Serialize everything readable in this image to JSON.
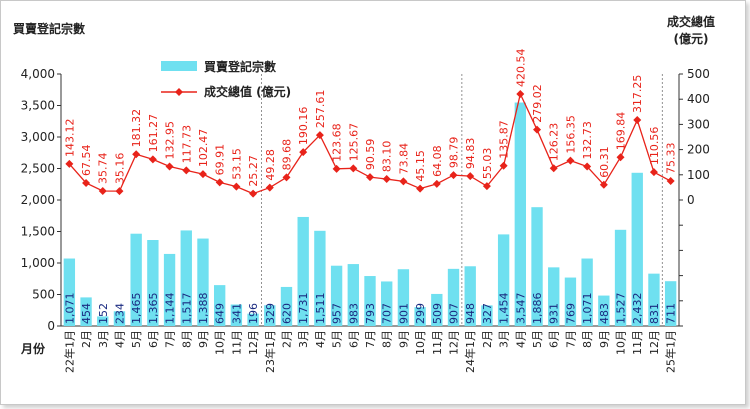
{
  "chart_data": {
    "type": "bar+line",
    "left_axis_title": "買賣登記宗數",
    "right_axis_title_line1": "成交總值",
    "right_axis_title_line2": "(億元)",
    "x_axis_title": "月份",
    "left_ylim": [
      0,
      4000
    ],
    "right_ylim": [
      -500,
      500
    ],
    "left_ticks": [
      "4,000",
      "3,500",
      "3,000",
      "2,500",
      "2,000",
      "1,500",
      "1,000",
      "500",
      "0"
    ],
    "right_ticks": [
      "500",
      "400",
      "300",
      "200",
      "100",
      "0"
    ],
    "legend_position": "top-left",
    "grid": false,
    "colors": {
      "bars": "#6fe0f0",
      "line": "#e8231a",
      "value_text_bar": "#1a2a80",
      "value_text_line": "#e8231a",
      "axis": "#333333"
    },
    "categories": [
      "22年1月",
      "2月",
      "3月",
      "4月",
      "5月",
      "6月",
      "7月",
      "8月",
      "9月",
      "10月",
      "11月",
      "12月",
      "23年1月",
      "2月",
      "3月",
      "4月",
      "5月",
      "6月",
      "7月",
      "8月",
      "9月",
      "10月",
      "11月",
      "12月",
      "24年1月",
      "2月",
      "3月",
      "4月",
      "5月",
      "6月",
      "7月",
      "8月",
      "9月",
      "10月",
      "11月",
      "12月",
      "25年1月"
    ],
    "year_separators_after": [
      11,
      23,
      35
    ],
    "series": [
      {
        "name": "買賣登記宗數",
        "kind": "bar",
        "axis": "left",
        "values": [
          1071,
          454,
          152,
          234,
          1465,
          1365,
          1144,
          1517,
          1388,
          649,
          341,
          196,
          329,
          620,
          1731,
          1511,
          957,
          983,
          793,
          707,
          901,
          299,
          509,
          907,
          948,
          327,
          1454,
          3547,
          1886,
          931,
          769,
          1071,
          483,
          1527,
          2432,
          831,
          711
        ],
        "labels": [
          "1,071",
          "454",
          "152",
          "234",
          "1,465",
          "1,365",
          "1,144",
          "1,517",
          "1,388",
          "649",
          "341",
          "196",
          "329",
          "620",
          "1,731",
          "1,511",
          "957",
          "983",
          "793",
          "707",
          "901",
          "299",
          "509",
          "907",
          "948",
          "327",
          "1,454",
          "3,547",
          "1,886",
          "931",
          "769",
          "1,071",
          "483",
          "1,527",
          "2,432",
          "831",
          "711"
        ]
      },
      {
        "name": "成交總值 (億元)",
        "kind": "line",
        "axis": "right",
        "values": [
          143.12,
          67.54,
          35.74,
          35.16,
          181.32,
          161.27,
          132.95,
          117.73,
          102.47,
          69.91,
          53.15,
          25.27,
          49.28,
          89.68,
          190.16,
          257.61,
          123.68,
          125.67,
          90.59,
          83.1,
          73.84,
          45.15,
          64.08,
          98.79,
          94.83,
          55.03,
          135.87,
          420.54,
          279.02,
          126.23,
          156.35,
          132.73,
          60.31,
          169.84,
          317.25,
          110.56,
          75.33
        ],
        "labels": [
          "143.12",
          "67.54",
          "35.74",
          "35.16",
          "181.32",
          "161.27",
          "132.95",
          "117.73",
          "102.47",
          "69.91",
          "53.15",
          "25.27",
          "49.28",
          "89.68",
          "190.16",
          "257.61",
          "123.68",
          "125.67",
          "90.59",
          "83.10",
          "73.84",
          "45.15",
          "64.08",
          "98.79",
          "94.83",
          "55.03",
          "135.87",
          "420.54",
          "279.02",
          "126.23",
          "156.35",
          "132.73",
          "60.31",
          "169.84",
          "317.25",
          "110.56",
          "75.33"
        ]
      }
    ]
  }
}
